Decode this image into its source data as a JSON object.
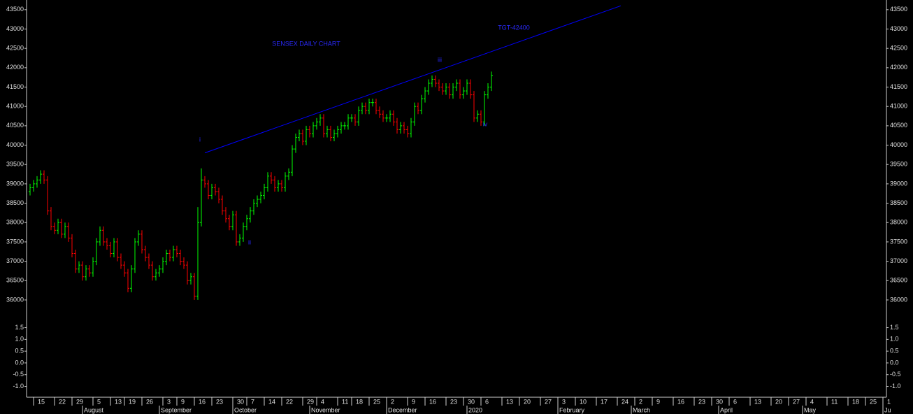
{
  "chart_data": [
    {
      "type": "ohlc",
      "title": "SENSEX DAILY CHART",
      "annotations": [
        "i",
        "ii",
        "iii",
        "iv",
        "TGT-42400"
      ],
      "up_color": "#00ff00",
      "down_color": "#ff0000",
      "xlim": [
        0,
        246
      ],
      "ylim": [
        35800,
        43750
      ],
      "yticks": [
        36000,
        36500,
        37000,
        37500,
        38000,
        38500,
        39000,
        39500,
        40000,
        40500,
        41000,
        41500,
        42000,
        42500,
        43000,
        43500
      ],
      "xticks": [
        {
          "value": 2,
          "label": "15"
        },
        {
          "value": 8,
          "label": "22"
        },
        {
          "value": 13,
          "label": "29"
        },
        {
          "value": 19,
          "label": "5"
        },
        {
          "value": 24,
          "label": "13"
        },
        {
          "value": 28,
          "label": "19"
        },
        {
          "value": 33,
          "label": "26"
        },
        {
          "value": 39,
          "label": "3"
        },
        {
          "value": 43,
          "label": "9"
        },
        {
          "value": 48,
          "label": "16"
        },
        {
          "value": 53,
          "label": "23"
        },
        {
          "value": 59,
          "label": "30"
        },
        {
          "value": 63,
          "label": "7"
        },
        {
          "value": 68,
          "label": "14"
        },
        {
          "value": 73,
          "label": "22"
        },
        {
          "value": 79,
          "label": "29"
        },
        {
          "value": 83,
          "label": "4"
        },
        {
          "value": 89,
          "label": "11"
        },
        {
          "value": 93,
          "label": "18"
        },
        {
          "value": 98,
          "label": "25"
        },
        {
          "value": 103,
          "label": "2"
        },
        {
          "value": 109,
          "label": "9"
        },
        {
          "value": 114,
          "label": "16"
        },
        {
          "value": 120,
          "label": "23"
        },
        {
          "value": 125,
          "label": "30"
        },
        {
          "value": 130,
          "label": "6"
        },
        {
          "value": 136,
          "label": "13"
        },
        {
          "value": 141,
          "label": "20"
        },
        {
          "value": 147,
          "label": "27"
        },
        {
          "value": 152,
          "label": "3"
        },
        {
          "value": 157,
          "label": "10"
        },
        {
          "value": 163,
          "label": "17"
        },
        {
          "value": 169,
          "label": "24"
        },
        {
          "value": 174,
          "label": "2"
        },
        {
          "value": 179,
          "label": "9"
        },
        {
          "value": 185,
          "label": "16"
        },
        {
          "value": 191,
          "label": "23"
        },
        {
          "value": 196,
          "label": "30"
        },
        {
          "value": 201,
          "label": "6"
        },
        {
          "value": 207,
          "label": "13"
        },
        {
          "value": 213,
          "label": "20"
        },
        {
          "value": 218,
          "label": "27"
        },
        {
          "value": 223,
          "label": "4"
        },
        {
          "value": 229,
          "label": "11"
        },
        {
          "value": 235,
          "label": "18"
        },
        {
          "value": 240,
          "label": "25"
        },
        {
          "value": 245,
          "label": "1"
        }
      ],
      "month_ticks": [
        {
          "value": 16,
          "label": "August"
        },
        {
          "value": 38,
          "label": "September"
        },
        {
          "value": 59,
          "label": "October"
        },
        {
          "value": 81,
          "label": "November"
        },
        {
          "value": 103,
          "label": "December"
        },
        {
          "value": 126,
          "label": "2020"
        },
        {
          "value": 152,
          "label": "February"
        },
        {
          "value": 173,
          "label": "March"
        },
        {
          "value": 198,
          "label": "April"
        },
        {
          "value": 222,
          "label": "May"
        },
        {
          "value": 245,
          "label": "Ju"
        }
      ],
      "trendline": {
        "color": "#0000ff",
        "x": [
          51,
          170
        ],
        "y": [
          39800,
          43600
        ]
      },
      "x": [
        1,
        2,
        3,
        4,
        5,
        6,
        7,
        8,
        9,
        10,
        11,
        12,
        13,
        14,
        15,
        16,
        17,
        18,
        19,
        20,
        21,
        22,
        23,
        24,
        25,
        26,
        27,
        28,
        29,
        30,
        31,
        32,
        33,
        34,
        35,
        36,
        37,
        38,
        39,
        40,
        41,
        42,
        43,
        44,
        45,
        46,
        47,
        48,
        49,
        50,
        51,
        52,
        53,
        54,
        55,
        56,
        57,
        58,
        59,
        60,
        61,
        62,
        63,
        64,
        65,
        66,
        67,
        68,
        69,
        70,
        71,
        72,
        73,
        74,
        75,
        76,
        77,
        78,
        79,
        80,
        81,
        82,
        83,
        84,
        85,
        86,
        87,
        88,
        89,
        90,
        91,
        92,
        93,
        94,
        95,
        96,
        97,
        98,
        99,
        100,
        101,
        102,
        103,
        104,
        105,
        106,
        107,
        108,
        109,
        110,
        111,
        112,
        113,
        114,
        115,
        116,
        117,
        118,
        119,
        120,
        121,
        122,
        123,
        124,
        125,
        126,
        127,
        128,
        129,
        130,
        131,
        132,
        133
      ],
      "open": [
        38800,
        38900,
        39000,
        39100,
        39250,
        39100,
        38300,
        37900,
        37800,
        38000,
        37700,
        37900,
        37600,
        37200,
        36800,
        36900,
        36600,
        36800,
        36700,
        37000,
        37500,
        37800,
        37500,
        37400,
        37200,
        37500,
        37100,
        36900,
        36700,
        36300,
        36800,
        37500,
        37700,
        37300,
        37100,
        36900,
        36600,
        36700,
        36800,
        37000,
        37200,
        37100,
        37300,
        37200,
        37000,
        36900,
        36500,
        36600,
        36100,
        38000,
        39100,
        39000,
        38700,
        38900,
        38800,
        38600,
        38300,
        38100,
        37900,
        38200,
        37500,
        37600,
        37900,
        38100,
        38300,
        38500,
        38600,
        38700,
        38900,
        39200,
        39100,
        38900,
        39000,
        38900,
        39200,
        39300,
        39900,
        40200,
        40300,
        40100,
        40400,
        40300,
        40500,
        40600,
        40700,
        40300,
        40400,
        40200,
        40300,
        40400,
        40500,
        40500,
        40700,
        40700,
        40600,
        40900,
        41000,
        40900,
        41100,
        41100,
        40900,
        40800,
        40700,
        40700,
        40800,
        40600,
        40400,
        40500,
        40400,
        40300,
        40600,
        41000,
        40900,
        41200,
        41400,
        41600,
        41700,
        41600,
        41500,
        41400,
        41500,
        41300,
        41500,
        41600,
        41300,
        41400,
        41600,
        41300,
        40700,
        40800,
        40600,
        41300,
        41500
      ],
      "high": [
        39000,
        39100,
        39200,
        39350,
        39350,
        39200,
        38400,
        38000,
        38100,
        38100,
        38000,
        38000,
        37700,
        37300,
        37000,
        37000,
        36900,
        36900,
        37100,
        37600,
        37900,
        37900,
        37600,
        37500,
        37600,
        37600,
        37200,
        37000,
        36800,
        36900,
        37600,
        37800,
        37800,
        37400,
        37200,
        37000,
        36800,
        36900,
        37100,
        37300,
        37300,
        37400,
        37400,
        37300,
        37100,
        37000,
        36700,
        36700,
        38400,
        39400,
        39200,
        39100,
        39000,
        39000,
        38900,
        38700,
        38400,
        38200,
        38300,
        38300,
        37700,
        38000,
        38200,
        38400,
        38600,
        38700,
        38800,
        39000,
        39300,
        39300,
        39200,
        39100,
        39100,
        39300,
        39400,
        40000,
        40300,
        40400,
        40400,
        40500,
        40500,
        40600,
        40700,
        40800,
        40800,
        40500,
        40500,
        40400,
        40500,
        40600,
        40600,
        40800,
        40800,
        40800,
        41000,
        41100,
        41100,
        41200,
        41200,
        41200,
        41000,
        40900,
        40800,
        40900,
        40900,
        40700,
        40600,
        40600,
        40500,
        40700,
        41100,
        41100,
        41300,
        41500,
        41700,
        41800,
        41800,
        41700,
        41600,
        41600,
        41600,
        41600,
        41700,
        41700,
        41500,
        41700,
        41700,
        41400,
        40900,
        40900,
        41400,
        41600,
        41900
      ],
      "low": [
        38700,
        38800,
        38900,
        39000,
        39000,
        38200,
        37800,
        37700,
        37700,
        37600,
        37600,
        37500,
        37100,
        36700,
        36700,
        36500,
        36500,
        36600,
        36600,
        36900,
        37400,
        37400,
        37300,
        37100,
        37100,
        37000,
        36800,
        36600,
        36200,
        36200,
        36700,
        37400,
        37200,
        37000,
        36800,
        36500,
        36500,
        36600,
        36700,
        36900,
        37000,
        37000,
        37100,
        36900,
        36800,
        36400,
        36400,
        36000,
        36000,
        37900,
        38900,
        38600,
        38600,
        38700,
        38500,
        38200,
        38000,
        37800,
        37800,
        37400,
        37400,
        37500,
        37800,
        38000,
        38200,
        38400,
        38500,
        38600,
        38800,
        39000,
        38800,
        38800,
        38800,
        38800,
        39100,
        39200,
        39800,
        40100,
        40000,
        40000,
        40200,
        40200,
        40400,
        40500,
        40200,
        40200,
        40100,
        40100,
        40200,
        40300,
        40400,
        40400,
        40600,
        40500,
        40500,
        40800,
        40800,
        40800,
        41000,
        40800,
        40700,
        40600,
        40600,
        40600,
        40500,
        40300,
        40300,
        40300,
        40200,
        40200,
        40500,
        40800,
        40800,
        41100,
        41300,
        41500,
        41500,
        41400,
        41300,
        41300,
        41200,
        41200,
        41400,
        41200,
        41200,
        41300,
        41200,
        40600,
        40600,
        40500,
        40500,
        41200,
        41400
      ],
      "close": [
        38900,
        39000,
        39100,
        39250,
        39100,
        38300,
        37900,
        37800,
        38000,
        37700,
        37900,
        37600,
        37200,
        36800,
        36900,
        36600,
        36800,
        36700,
        37000,
        37500,
        37800,
        37500,
        37400,
        37200,
        37500,
        37100,
        36900,
        36700,
        36300,
        36800,
        37500,
        37700,
        37300,
        37100,
        36900,
        36600,
        36700,
        36800,
        37000,
        37200,
        37100,
        37300,
        37200,
        37000,
        36900,
        36500,
        36600,
        36100,
        38000,
        39100,
        39000,
        38700,
        38900,
        38800,
        38600,
        38300,
        38100,
        37900,
        38200,
        37500,
        37600,
        37900,
        38100,
        38300,
        38500,
        38600,
        38700,
        38900,
        39200,
        39100,
        38900,
        39000,
        38900,
        39200,
        39300,
        39900,
        40200,
        40300,
        40100,
        40400,
        40300,
        40500,
        40600,
        40700,
        40300,
        40400,
        40200,
        40300,
        40400,
        40500,
        40500,
        40700,
        40700,
        40600,
        40900,
        41000,
        40900,
        41100,
        41100,
        40900,
        40800,
        40700,
        40700,
        40800,
        40600,
        40400,
        40500,
        40400,
        40300,
        40600,
        41000,
        40900,
        41200,
        41400,
        41600,
        41700,
        41600,
        41500,
        41400,
        41500,
        41300,
        41500,
        41600,
        41300,
        41400,
        41600,
        41300,
        40700,
        40800,
        40600,
        41300,
        41500,
        41800
      ]
    },
    {
      "type": "indicator",
      "ylim": [
        -1.4,
        2.2
      ],
      "yticks": [
        1.5,
        {
          "value": 1,
          "label": "1.0"
        },
        0.5,
        {
          "value": 0,
          "label": "0.0"
        },
        -0.5,
        {
          "value": -1,
          "label": "-1.0"
        }
      ]
    }
  ]
}
